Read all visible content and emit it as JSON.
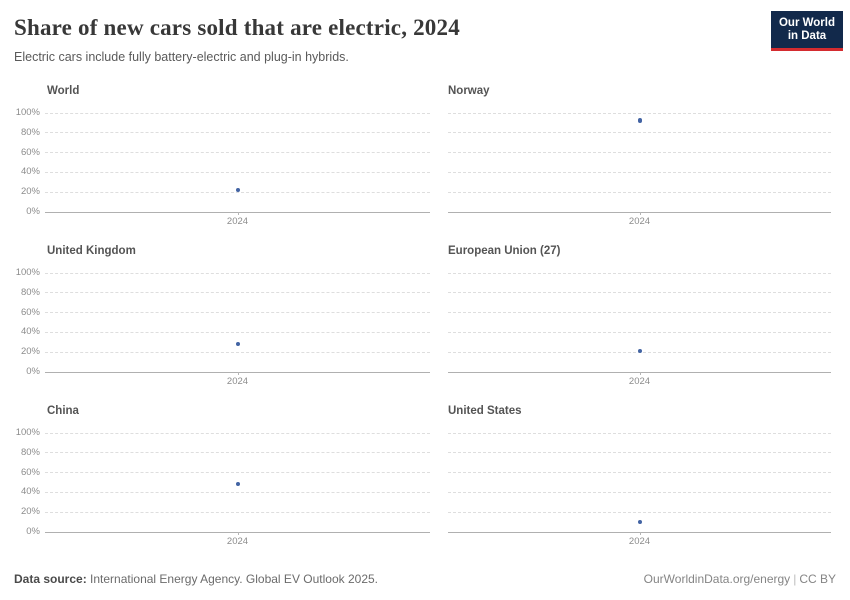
{
  "header": {
    "title": "Share of new cars sold that are electric, 2024",
    "subtitle": "Electric cars include fully battery-electric and plug-in hybrids.",
    "logo": {
      "line1": "Our World",
      "line2": "in Data"
    }
  },
  "chart_data": {
    "type": "scatter",
    "title": "Share of new cars sold that are electric, 2024",
    "layout": "small-multiples, 2 columns x 3 rows, shared axes",
    "x": [
      2024
    ],
    "xtick": "2024",
    "ylim": [
      0,
      100
    ],
    "yticks": [
      0,
      20,
      40,
      60,
      80,
      100
    ],
    "ytick_suffix": "%",
    "grid": "horizontal dashed gridlines, solid zero axis",
    "legend": "none",
    "facets": [
      {
        "title": "World",
        "year": 2024,
        "value": 22
      },
      {
        "title": "Norway",
        "year": 2024,
        "value": 92
      },
      {
        "title": "United Kingdom",
        "year": 2024,
        "value": 28
      },
      {
        "title": "European Union (27)",
        "year": 2024,
        "value": 21
      },
      {
        "title": "China",
        "year": 2024,
        "value": 48
      },
      {
        "title": "United States",
        "year": 2024,
        "value": 10
      }
    ]
  },
  "footer": {
    "source_label": "Data source:",
    "source_text": " International Energy Agency. Global EV Outlook 2025.",
    "link": "OurWorldinData.org/energy",
    "divider": "|",
    "license": "CC BY"
  },
  "colors": {
    "point": "#4263a3",
    "logo_bg": "#12294b",
    "logo_accent": "#d42b2f",
    "gridline": "#dedede",
    "axis": "#b0b0b0"
  }
}
